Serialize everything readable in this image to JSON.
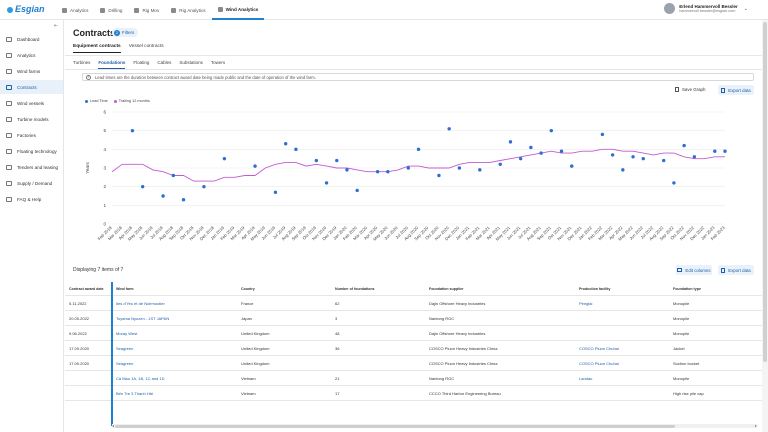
{
  "brand": {
    "name": "Esgian"
  },
  "topnav": [
    {
      "label": "Analytics",
      "icon": "chart-icon",
      "active": false
    },
    {
      "label": "Drilling",
      "icon": "rig-icon",
      "active": false
    },
    {
      "label": "Rig Mov",
      "icon": "truck-icon",
      "active": false
    },
    {
      "label": "Rig Analytics",
      "icon": "analytics-icon",
      "active": false
    },
    {
      "label": "Wind Analytics",
      "icon": "wind-icon",
      "active": true
    }
  ],
  "user": {
    "name": "Erlend Hammervoll Bessler",
    "email": "hammervoll.bessler@esgian.com"
  },
  "sidebar": [
    {
      "label": "Dashboard",
      "icon": "dashboard-icon",
      "active": false
    },
    {
      "label": "Analytics",
      "icon": "analytics-icon",
      "active": false
    },
    {
      "label": "Wind farms",
      "icon": "wind-farm-icon",
      "active": false
    },
    {
      "label": "Contracts",
      "icon": "contract-icon",
      "active": true
    },
    {
      "label": "Wind vessels",
      "icon": "vessel-icon",
      "active": false
    },
    {
      "label": "Turbine models",
      "icon": "turbine-icon",
      "active": false
    },
    {
      "label": "Factories",
      "icon": "factory-icon",
      "active": false
    },
    {
      "label": "Floating technology",
      "icon": "floating-icon",
      "active": false
    },
    {
      "label": "Tenders and leasing",
      "icon": "tender-icon",
      "active": false
    },
    {
      "label": "Supply / Demand",
      "icon": "supply-icon",
      "active": false
    },
    {
      "label": "FAQ & Help",
      "icon": "help-icon",
      "active": false
    }
  ],
  "page": {
    "title": "Contracts",
    "filters_label": "Filters",
    "filters_count": "2",
    "tabs": [
      "Equipment contracts",
      "Vessel contracts"
    ],
    "subtabs": [
      "Turbines",
      "Foundations",
      "Floating",
      "Cables",
      "Substations",
      "Towers"
    ],
    "info_text": "Lead times are the duration between contract award date being made public and the date of operation of the wind farm.",
    "save_graph": "Save Graph",
    "export_data": "Export data",
    "legend": [
      {
        "label": "Lead Time",
        "color": "#2d6fd1"
      },
      {
        "label": "Trailing 12 months",
        "color": "#c25bd1"
      }
    ],
    "display_text": "Displaying 7 items of 7",
    "edit_columns": "Edit columns",
    "export_data_2": "Export data"
  },
  "chart_data": {
    "type": "scatter",
    "ylabel": "Years",
    "ylim": [
      0,
      6
    ],
    "yticks": [
      0,
      1,
      2,
      3,
      4,
      5,
      6
    ],
    "categories": [
      "Feb 2018",
      "Mar 2018",
      "Apr 2018",
      "May 2018",
      "Jun 2018",
      "Jul 2018",
      "Aug 2018",
      "Sep 2018",
      "Oct 2018",
      "Nov 2018",
      "Dec 2018",
      "Jan 2019",
      "Feb 2019",
      "Mar 2019",
      "Apr 2019",
      "May 2019",
      "Jun 2019",
      "Jul 2019",
      "Aug 2019",
      "Sep 2019",
      "Oct 2019",
      "Nov 2019",
      "Dec 2019",
      "Jan 2020",
      "Feb 2020",
      "Mar 2020",
      "Apr 2020",
      "May 2020",
      "Jun 2020",
      "Jul 2020",
      "Aug 2020",
      "Sep 2020",
      "Oct 2020",
      "Nov 2020",
      "Dec 2020",
      "Jan 2021",
      "Feb 2021",
      "Mar 2021",
      "Apr 2021",
      "May 2021",
      "Jun 2021",
      "Jul 2021",
      "Aug 2021",
      "Sep 2021",
      "Oct 2021",
      "Nov 2021",
      "Dec 2021",
      "Jan 2022",
      "Feb 2022",
      "Mar 2022",
      "Apr 2022",
      "May 2022",
      "Jun 2022",
      "Jul 2022",
      "Aug 2022",
      "Sep 2022",
      "Oct 2022",
      "Nov 2022",
      "Dec 2022",
      "Jan 2023",
      "Feb 2023"
    ],
    "series": [
      {
        "name": "Lead Time",
        "color": "#2d6fd1",
        "points": [
          [
            2,
            5.0
          ],
          [
            3,
            2.0
          ],
          [
            5,
            1.5
          ],
          [
            6,
            2.6
          ],
          [
            7,
            1.3
          ],
          [
            9,
            2.0
          ],
          [
            11,
            3.5
          ],
          [
            14,
            3.1
          ],
          [
            16,
            1.7
          ],
          [
            17,
            4.3
          ],
          [
            18,
            4.0
          ],
          [
            20,
            3.4
          ],
          [
            21,
            2.2
          ],
          [
            22,
            3.4
          ],
          [
            23,
            2.9
          ],
          [
            24,
            1.8
          ],
          [
            26,
            2.8
          ],
          [
            27,
            2.8
          ],
          [
            29,
            3.0
          ],
          [
            30,
            4.0
          ],
          [
            32,
            2.6
          ],
          [
            33,
            5.1
          ],
          [
            34,
            3.0
          ],
          [
            36,
            2.9
          ],
          [
            38,
            3.2
          ],
          [
            39,
            4.4
          ],
          [
            40,
            3.5
          ],
          [
            41,
            4.1
          ],
          [
            42,
            3.8
          ],
          [
            43,
            5.0
          ],
          [
            44,
            3.9
          ],
          [
            45,
            3.1
          ],
          [
            48,
            4.8
          ],
          [
            49,
            3.7
          ],
          [
            50,
            2.9
          ],
          [
            51,
            3.6
          ],
          [
            52,
            3.5
          ],
          [
            54,
            3.4
          ],
          [
            55,
            2.2
          ],
          [
            56,
            4.2
          ],
          [
            57,
            3.6
          ],
          [
            59,
            3.9
          ],
          [
            60,
            3.9
          ]
        ]
      },
      {
        "name": "Trailing 12 months",
        "color": "#c25bd1",
        "values": [
          2.8,
          3.2,
          3.2,
          3.2,
          2.9,
          2.8,
          2.6,
          2.6,
          2.3,
          2.3,
          2.3,
          2.5,
          2.5,
          2.6,
          2.6,
          3.0,
          3.2,
          3.3,
          3.3,
          3.1,
          3.2,
          3.1,
          3.0,
          3.0,
          2.9,
          2.8,
          2.8,
          2.8,
          2.9,
          3.1,
          3.1,
          3.0,
          3.0,
          3.0,
          3.2,
          3.3,
          3.3,
          3.3,
          3.4,
          3.5,
          3.6,
          3.7,
          3.8,
          3.9,
          3.8,
          3.8,
          3.9,
          3.9,
          4.0,
          4.0,
          3.9,
          3.9,
          3.8,
          3.7,
          3.8,
          3.8,
          3.6,
          3.5,
          3.5,
          3.6,
          3.6
        ]
      }
    ]
  },
  "table": {
    "columns": [
      "Contract award date",
      "Wind farm",
      "Country",
      "Number of foundations",
      "Foundation supplier",
      "Production facility",
      "Foundation type"
    ],
    "rows": [
      {
        "date": "5.11.2022",
        "farm": "Iles d'Yeu et de Noirmoutier",
        "country": "France",
        "num": "62",
        "supplier": "Dajin Offshore Heavy Industries",
        "facility": "Penglai",
        "type": "Monopile"
      },
      {
        "date": "20.05.2022",
        "farm": "Toyama Nyuzen - 1ST JAPAN",
        "country": "Japan",
        "num": "3",
        "supplier": "Nantong RGC",
        "facility": "",
        "type": "Monopile"
      },
      {
        "date": "9.06.2022",
        "farm": "Moray West",
        "country": "United Kingdom",
        "num": "48",
        "supplier": "Dajin Offshore Heavy Industries",
        "facility": "",
        "type": "Monopile"
      },
      {
        "date": "17.09.2020",
        "farm": "Seagreen",
        "country": "United Kingdom",
        "num": "36",
        "supplier": "COSCO Pluon Heavy Industries China",
        "facility": "COSCO Pluon Chuhai",
        "type": "Jacket"
      },
      {
        "date": "17.09.2020",
        "farm": "Seagreen",
        "country": "United Kingdom",
        "num": "",
        "supplier": "COSCO Pluon Heavy Industries China",
        "facility": "COSCO Pluon Chuhai",
        "type": "Suction bucket"
      },
      {
        "date": "",
        "farm": "Cà Mau 1A, 1B, 1C and 1D",
        "country": "Vietnam",
        "num": "21",
        "supplier": "Nantong RGC",
        "facility": "Landau",
        "type": "Monopile"
      },
      {
        "date": "",
        "farm": "Bến Tre 3 Thạnh Hải",
        "country": "Vietnam",
        "num": "17",
        "supplier": "CCCO Third Harbor Engineering Bureau",
        "facility": "",
        "type": "High rise pile cap"
      }
    ]
  }
}
